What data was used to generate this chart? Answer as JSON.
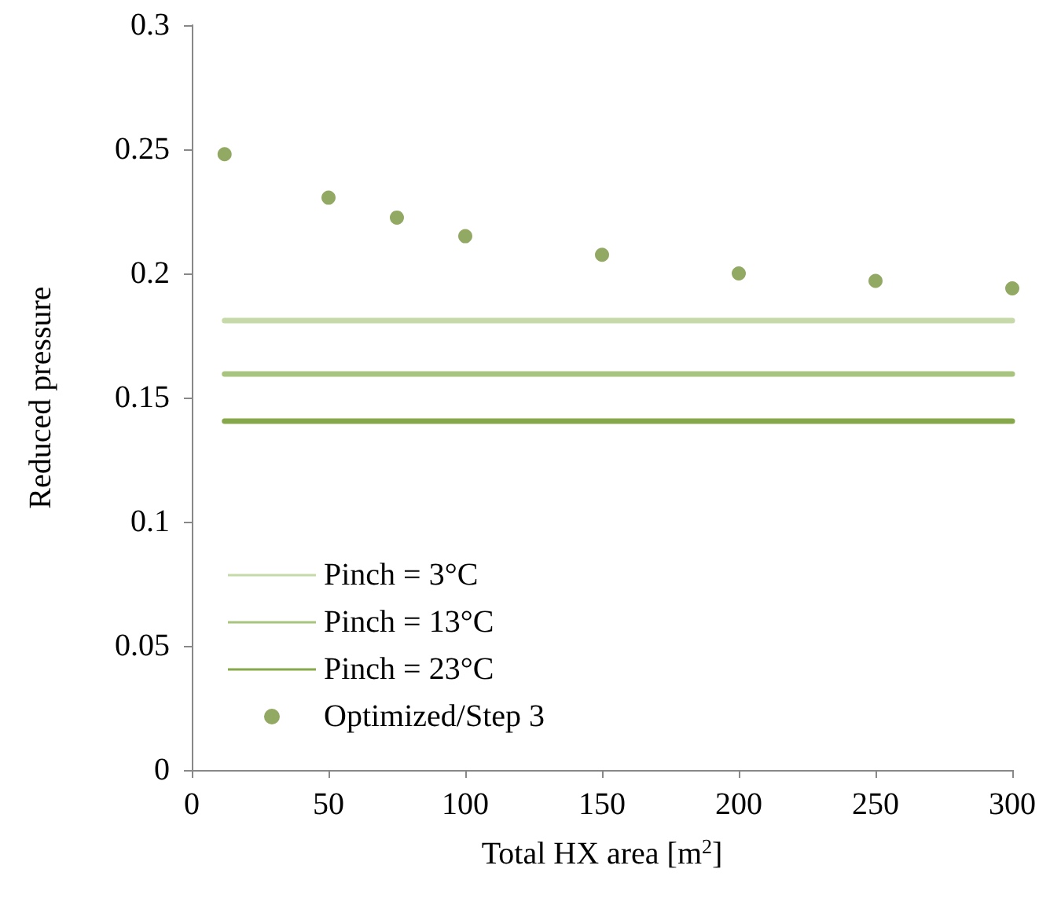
{
  "chart_data": {
    "type": "line",
    "xlabel": "Total HX area [m$^{2}$]",
    "ylabel": "Reduced pressure",
    "xlim": [
      0,
      300
    ],
    "xticks": [
      0,
      50,
      100,
      150,
      200,
      250,
      300
    ],
    "ylim": [
      0,
      0.3
    ],
    "yticks": [
      0,
      0.05,
      0.1,
      0.15,
      0.2,
      0.25,
      0.3
    ],
    "grid": false,
    "legend": "bottom left",
    "line_style": "solid",
    "series": [
      {
        "name": "Pinch = 3°C",
        "type": "line",
        "marker": "none",
        "color": "#c6d9a8",
        "x": [
          12,
          300
        ],
        "values": [
          0.181,
          0.181
        ]
      },
      {
        "name": "Pinch = 13°C",
        "type": "line",
        "marker": "none",
        "color": "#a9c47e",
        "x": [
          12,
          300
        ],
        "values": [
          0.1595,
          0.1595
        ]
      },
      {
        "name": "Pinch = 23°C",
        "type": "line",
        "marker": "none",
        "color": "#86a84a",
        "x": [
          12,
          300
        ],
        "values": [
          0.1405,
          0.1405
        ]
      },
      {
        "name": "Optimized/Step 3",
        "type": "scatter",
        "marker": "circle",
        "color": "#77933c",
        "x": [
          12,
          50,
          75,
          100,
          150,
          200,
          250,
          300
        ],
        "values": [
          0.248,
          0.2305,
          0.2225,
          0.215,
          0.2075,
          0.2,
          0.197,
          0.194
        ]
      }
    ]
  }
}
